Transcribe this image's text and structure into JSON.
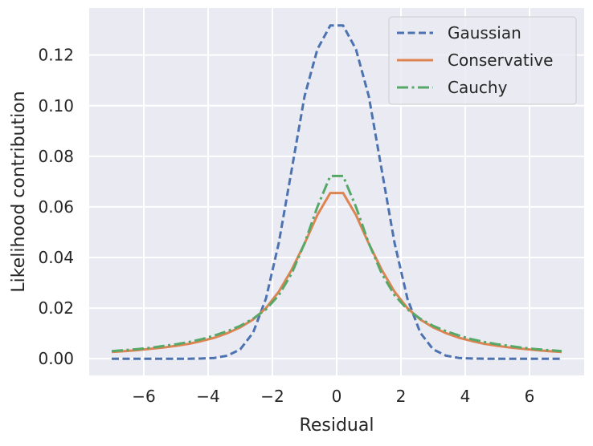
{
  "chart_data": {
    "type": "line",
    "title": "",
    "xlabel": "Residual",
    "ylabel": "Likelihood contribution",
    "xlim": [
      -7.7,
      7.7
    ],
    "ylim": [
      -0.0066,
      0.1386
    ],
    "x_ticks": [
      -6,
      -4,
      -2,
      0,
      2,
      4,
      6
    ],
    "x_tick_labels": [
      "−6",
      "−4",
      "−2",
      "0",
      "2",
      "4",
      "6"
    ],
    "y_ticks": [
      0.0,
      0.02,
      0.04,
      0.06,
      0.08,
      0.1,
      0.12
    ],
    "y_tick_labels": [
      "0.00",
      "0.02",
      "0.04",
      "0.06",
      "0.08",
      "0.10",
      "0.12"
    ],
    "grid": true,
    "legend_position": "top-right",
    "x": [
      -7.0,
      -6.6,
      -6.2,
      -5.8,
      -5.4,
      -5.0,
      -4.6,
      -4.2,
      -3.8,
      -3.4,
      -3.0,
      -2.6,
      -2.2,
      -1.8,
      -1.4,
      -1.0,
      -0.6,
      -0.2,
      0.2,
      0.6,
      1.0,
      1.4,
      1.8,
      2.2,
      2.6,
      3.0,
      3.4,
      3.8,
      4.2,
      4.6,
      5.0,
      5.4,
      5.8,
      6.2,
      6.6,
      7.0
    ],
    "series": [
      {
        "name": "Gaussian",
        "color": "#4c72b0",
        "style": "dashed",
        "values": [
          0.0,
          0.0,
          0.0,
          0.0,
          0.0,
          0.0,
          0.0,
          0.0001,
          0.0003,
          0.0012,
          0.0037,
          0.0103,
          0.0238,
          0.0458,
          0.0747,
          0.1037,
          0.1223,
          0.1317,
          0.1317,
          0.1223,
          0.1037,
          0.0747,
          0.0458,
          0.0238,
          0.0103,
          0.0037,
          0.0012,
          0.0003,
          0.0001,
          0.0,
          0.0,
          0.0,
          0.0,
          0.0,
          0.0,
          0.0
        ]
      },
      {
        "name": "Conservative",
        "color": "#dd8452",
        "style": "solid",
        "values": [
          0.0027,
          0.003,
          0.0034,
          0.0039,
          0.0044,
          0.0051,
          0.0059,
          0.007,
          0.0083,
          0.0101,
          0.0124,
          0.0155,
          0.02,
          0.0265,
          0.0352,
          0.0455,
          0.0568,
          0.0655,
          0.0655,
          0.0568,
          0.0455,
          0.0352,
          0.0265,
          0.02,
          0.0155,
          0.0124,
          0.0101,
          0.0083,
          0.007,
          0.0059,
          0.0051,
          0.0044,
          0.0039,
          0.0034,
          0.003,
          0.0027
        ]
      },
      {
        "name": "Cauchy",
        "color": "#55a868",
        "style": "dashdot",
        "values": [
          0.003,
          0.0034,
          0.0038,
          0.0043,
          0.005,
          0.0057,
          0.0066,
          0.0077,
          0.0092,
          0.0109,
          0.013,
          0.0158,
          0.0195,
          0.0251,
          0.0337,
          0.0456,
          0.06,
          0.0722,
          0.0722,
          0.06,
          0.0456,
          0.0337,
          0.0251,
          0.0195,
          0.0158,
          0.013,
          0.0109,
          0.0092,
          0.0077,
          0.0066,
          0.0057,
          0.005,
          0.0043,
          0.0038,
          0.0034,
          0.003
        ]
      }
    ]
  }
}
